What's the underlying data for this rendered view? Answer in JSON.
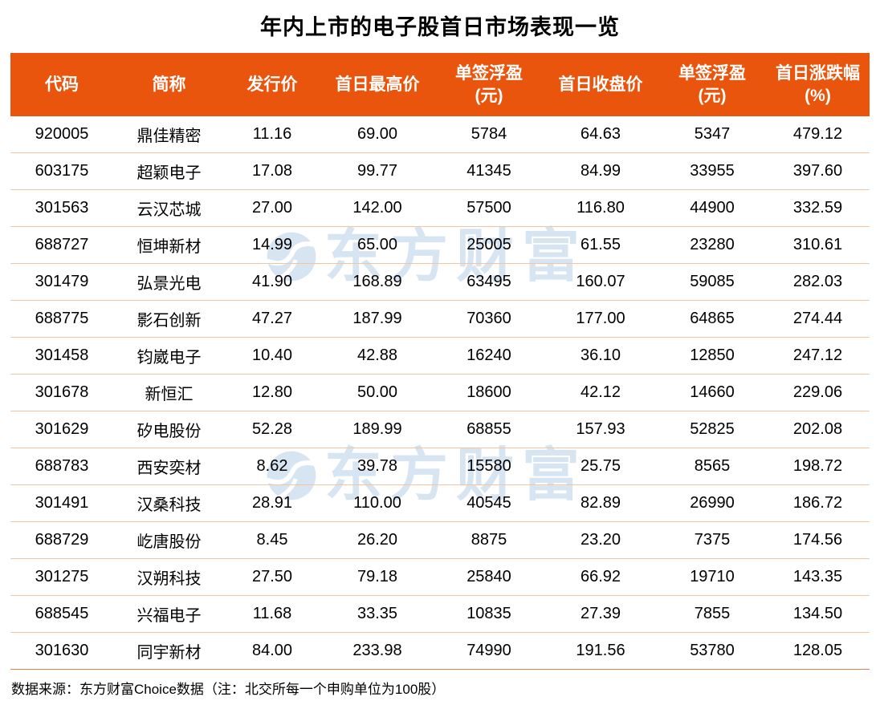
{
  "title": "年内上市的电子股首日市场表现一览",
  "watermark": {
    "text": "东方财富"
  },
  "footer": {
    "source_note": "数据来源：东方财富Choice数据（注：北交所每一个申购单位为100股）"
  },
  "colors": {
    "header_bg": "#e9550d",
    "row_divider": "#f4c49e",
    "bottom_border": "#e87f47",
    "watermark_color": "#d7e4f2",
    "title_color": "#000000"
  },
  "chart_data": {
    "type": "table",
    "title": "年内上市的电子股首日市场表现一览",
    "source_note": "数据来源：东方财富Choice数据（注：北交所每一个申购单位为100股）",
    "columns": [
      "代码",
      "简称",
      "发行价",
      "首日最高价",
      "单签浮盈\n(元)",
      "首日收盘价",
      "单签浮盈\n(元)",
      "首日涨跌幅\n(%)"
    ],
    "rows": [
      [
        "920005",
        "鼎佳精密",
        "11.16",
        "69.00",
        "5784",
        "64.63",
        "5347",
        "479.12"
      ],
      [
        "603175",
        "超颖电子",
        "17.08",
        "99.77",
        "41345",
        "84.99",
        "33955",
        "397.60"
      ],
      [
        "301563",
        "云汉芯城",
        "27.00",
        "142.00",
        "57500",
        "116.80",
        "44900",
        "332.59"
      ],
      [
        "688727",
        "恒坤新材",
        "14.99",
        "65.00",
        "25005",
        "61.55",
        "23280",
        "310.61"
      ],
      [
        "301479",
        "弘景光电",
        "41.90",
        "168.89",
        "63495",
        "160.07",
        "59085",
        "282.03"
      ],
      [
        "688775",
        "影石创新",
        "47.27",
        "187.99",
        "70360",
        "177.00",
        "64865",
        "274.44"
      ],
      [
        "301458",
        "钧崴电子",
        "10.40",
        "42.88",
        "16240",
        "36.10",
        "12850",
        "247.12"
      ],
      [
        "301678",
        "新恒汇",
        "12.80",
        "50.00",
        "18600",
        "42.12",
        "14660",
        "229.06"
      ],
      [
        "301629",
        "矽电股份",
        "52.28",
        "189.99",
        "68855",
        "157.93",
        "52825",
        "202.08"
      ],
      [
        "688783",
        "西安奕材",
        "8.62",
        "39.78",
        "15580",
        "25.75",
        "8565",
        "198.72"
      ],
      [
        "301491",
        "汉桑科技",
        "28.91",
        "110.00",
        "40545",
        "82.89",
        "26990",
        "186.72"
      ],
      [
        "688729",
        "屹唐股份",
        "8.45",
        "26.20",
        "8875",
        "23.20",
        "7375",
        "174.56"
      ],
      [
        "301275",
        "汉朔科技",
        "27.50",
        "79.18",
        "25840",
        "66.92",
        "19710",
        "143.35"
      ],
      [
        "688545",
        "兴福电子",
        "11.68",
        "33.35",
        "10835",
        "27.39",
        "7855",
        "134.50"
      ],
      [
        "301630",
        "同宇新材",
        "84.00",
        "233.98",
        "74990",
        "191.56",
        "53780",
        "128.05"
      ]
    ]
  }
}
